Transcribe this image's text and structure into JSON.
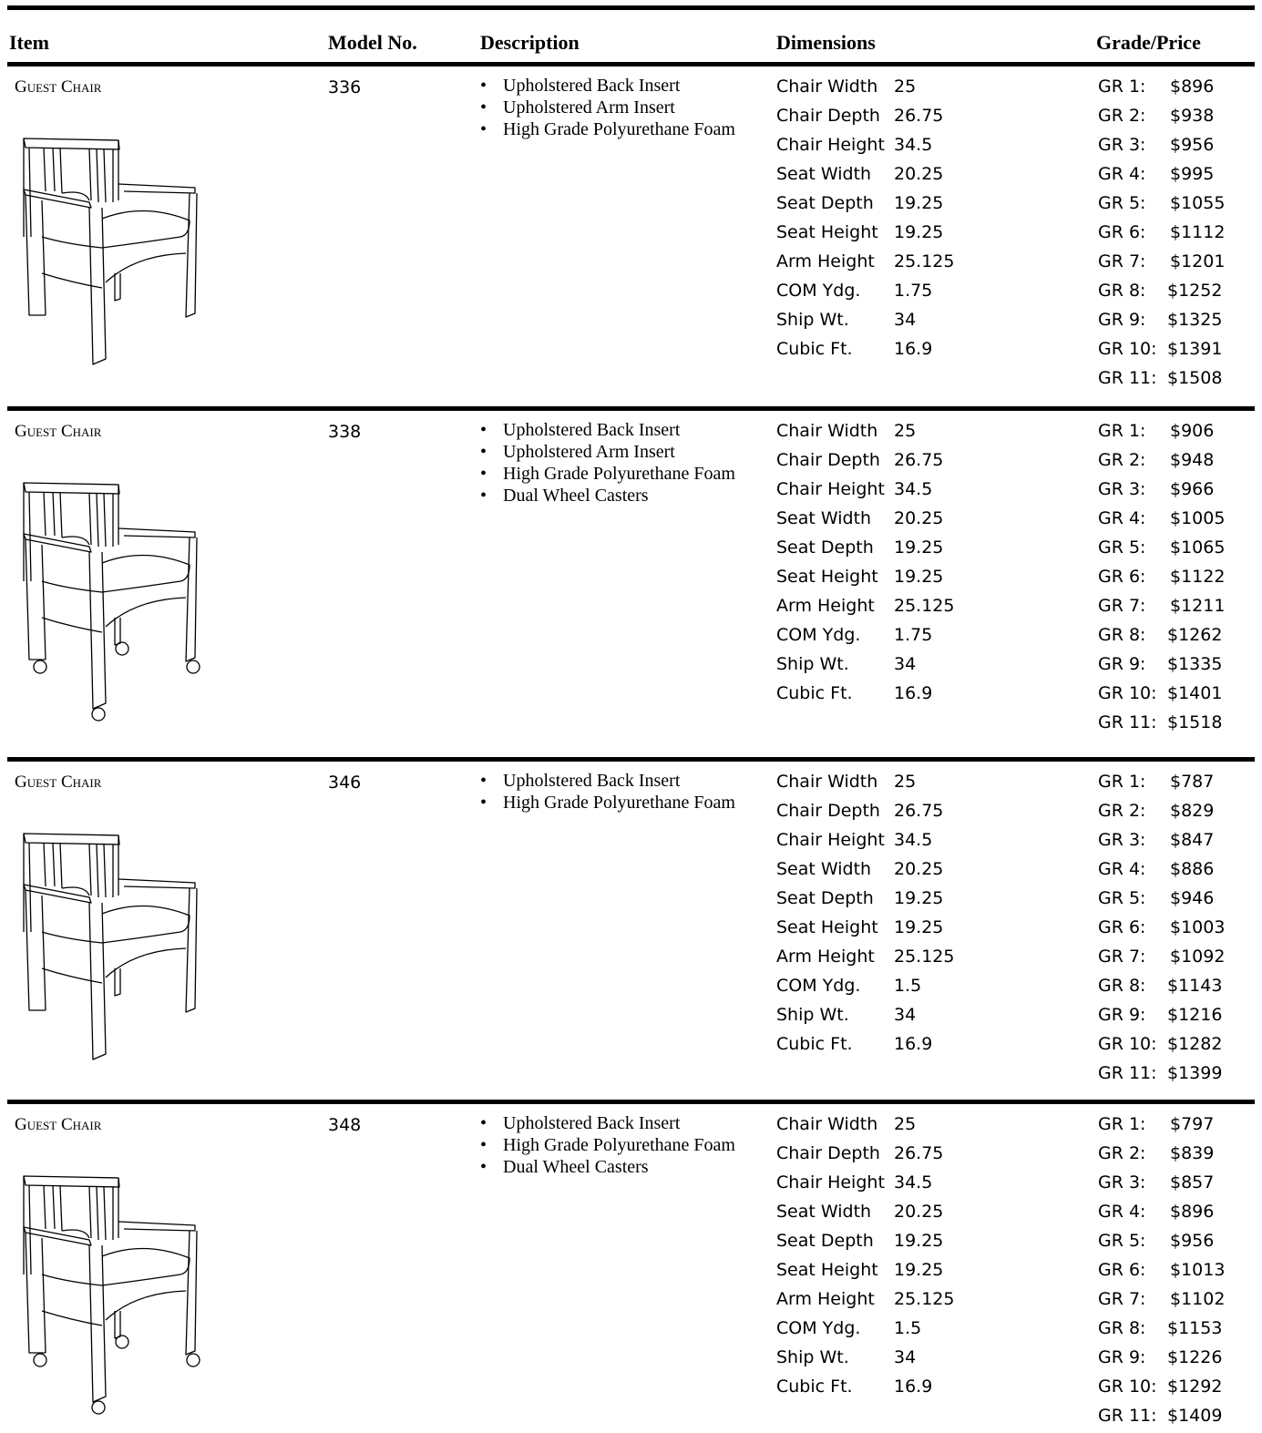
{
  "header": {
    "columns": [
      "Item",
      "Model No.",
      "Description",
      "Dimensions",
      "Grade/Price"
    ]
  },
  "rows": [
    {
      "item": "Guest Chair",
      "model": "336",
      "description": [
        "Upholstered Back Insert",
        "Upholstered Arm Insert",
        "High Grade Polyurethane Foam"
      ],
      "dimensions": [
        [
          "Chair Width",
          "25"
        ],
        [
          "Chair Depth",
          "26.75"
        ],
        [
          "Chair Height",
          "34.5"
        ],
        [
          "Seat Width",
          "20.25"
        ],
        [
          "Seat Depth",
          "19.25"
        ],
        [
          "Seat Height",
          "19.25"
        ],
        [
          "Arm Height",
          "25.125"
        ],
        [
          "COM Ydg.",
          "1.75"
        ],
        [
          "Ship Wt.",
          "34"
        ],
        [
          "Cubic Ft.",
          "16.9"
        ]
      ],
      "prices": [
        [
          "GR 1:",
          "$896"
        ],
        [
          "GR 2:",
          "$938"
        ],
        [
          "GR 3:",
          "$956"
        ],
        [
          "GR 4:",
          "$995"
        ],
        [
          "GR 5:",
          "$1055"
        ],
        [
          "GR 6:",
          "$1112"
        ],
        [
          "GR 7:",
          "$1201"
        ],
        [
          "GR 8:",
          "$1252"
        ],
        [
          "GR 9:",
          "$1325"
        ],
        [
          "GR 10:",
          "$1391"
        ],
        [
          "GR 11:",
          "$1508"
        ]
      ]
    },
    {
      "item": "Guest Chair",
      "model": "338",
      "description": [
        "Upholstered Back Insert",
        "Upholstered Arm Insert",
        "High Grade Polyurethane Foam",
        "Dual Wheel Casters"
      ],
      "dimensions": [
        [
          "Chair Width",
          "25"
        ],
        [
          "Chair Depth",
          "26.75"
        ],
        [
          "Chair Height",
          "34.5"
        ],
        [
          "Seat Width",
          "20.25"
        ],
        [
          "Seat Depth",
          "19.25"
        ],
        [
          "Seat Height",
          "19.25"
        ],
        [
          "Arm Height",
          "25.125"
        ],
        [
          "COM Ydg.",
          "1.75"
        ],
        [
          "Ship Wt.",
          "34"
        ],
        [
          "Cubic Ft.",
          "16.9"
        ]
      ],
      "prices": [
        [
          "GR 1:",
          "$906"
        ],
        [
          "GR 2:",
          "$948"
        ],
        [
          "GR 3:",
          "$966"
        ],
        [
          "GR 4:",
          "$1005"
        ],
        [
          "GR 5:",
          "$1065"
        ],
        [
          "GR 6:",
          "$1122"
        ],
        [
          "GR 7:",
          "$1211"
        ],
        [
          "GR 8:",
          "$1262"
        ],
        [
          "GR 9:",
          "$1335"
        ],
        [
          "GR 10:",
          "$1401"
        ],
        [
          "GR 11:",
          "$1518"
        ]
      ]
    },
    {
      "item": "Guest Chair",
      "model": "346",
      "description": [
        "Upholstered Back Insert",
        "High Grade Polyurethane Foam"
      ],
      "dimensions": [
        [
          "Chair Width",
          "25"
        ],
        [
          "Chair Depth",
          "26.75"
        ],
        [
          "Chair Height",
          "34.5"
        ],
        [
          "Seat Width",
          "20.25"
        ],
        [
          "Seat Depth",
          "19.25"
        ],
        [
          "Seat Height",
          "19.25"
        ],
        [
          "Arm Height",
          "25.125"
        ],
        [
          "COM Ydg.",
          "1.5"
        ],
        [
          "Ship Wt.",
          "34"
        ],
        [
          "Cubic Ft.",
          "16.9"
        ]
      ],
      "prices": [
        [
          "GR 1:",
          "$787"
        ],
        [
          "GR 2:",
          "$829"
        ],
        [
          "GR 3:",
          "$847"
        ],
        [
          "GR 4:",
          "$886"
        ],
        [
          "GR 5:",
          "$946"
        ],
        [
          "GR 6:",
          "$1003"
        ],
        [
          "GR 7:",
          "$1092"
        ],
        [
          "GR 8:",
          "$1143"
        ],
        [
          "GR 9:",
          "$1216"
        ],
        [
          "GR 10:",
          "$1282"
        ],
        [
          "GR 11:",
          "$1399"
        ]
      ]
    },
    {
      "item": "Guest Chair",
      "model": "348",
      "description": [
        "Upholstered Back Insert",
        "High Grade Polyurethane Foam",
        "Dual Wheel Casters"
      ],
      "dimensions": [
        [
          "Chair Width",
          "25"
        ],
        [
          "Chair Depth",
          "26.75"
        ],
        [
          "Chair Height",
          "34.5"
        ],
        [
          "Seat Width",
          "20.25"
        ],
        [
          "Seat Depth",
          "19.25"
        ],
        [
          "Seat Height",
          "19.25"
        ],
        [
          "Arm Height",
          "25.125"
        ],
        [
          "COM Ydg.",
          "1.5"
        ],
        [
          "Ship Wt.",
          "34"
        ],
        [
          "Cubic Ft.",
          "16.9"
        ]
      ],
      "prices": [
        [
          "GR 1:",
          "$797"
        ],
        [
          "GR 2:",
          "$839"
        ],
        [
          "GR 3:",
          "$857"
        ],
        [
          "GR 4:",
          "$896"
        ],
        [
          "GR 5:",
          "$956"
        ],
        [
          "GR 6:",
          "$1013"
        ],
        [
          "GR 7:",
          "$1102"
        ],
        [
          "GR 8:",
          "$1153"
        ],
        [
          "GR 9:",
          "$1226"
        ],
        [
          "GR 10:",
          "$1292"
        ],
        [
          "GR 11:",
          "$1409"
        ]
      ]
    }
  ]
}
